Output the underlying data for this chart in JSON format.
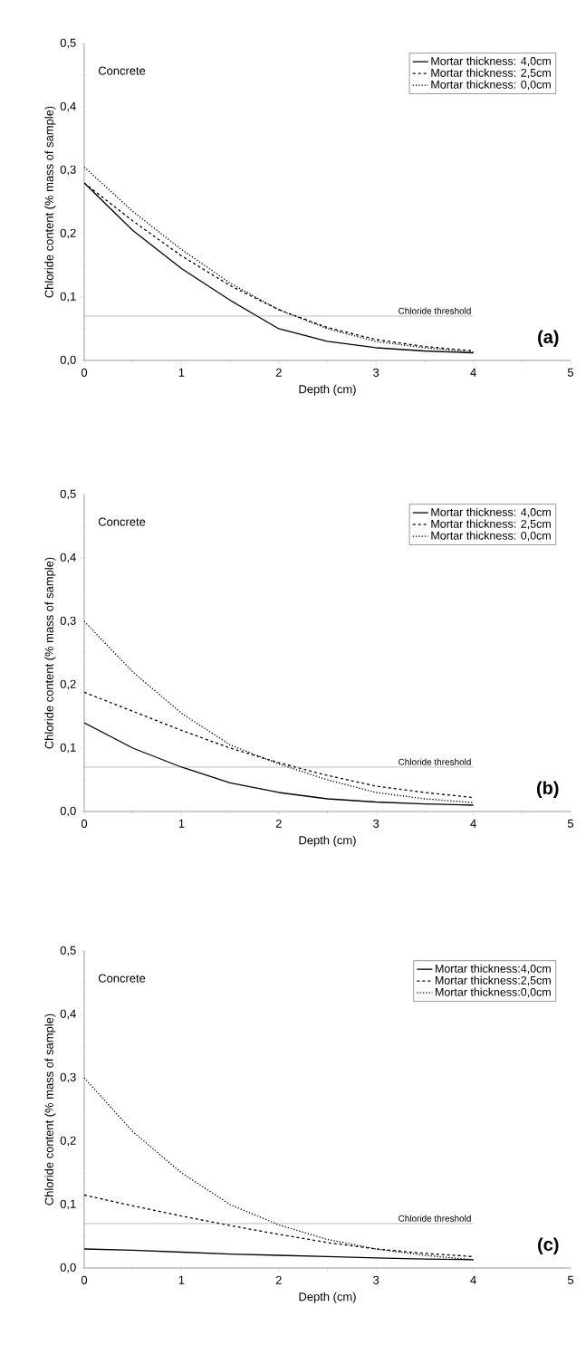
{
  "chart_data": [
    {
      "type": "line",
      "xlabel": "Depth (cm)",
      "ylabel": "Chloride content (% mass of sample)",
      "xlim": [
        0,
        5
      ],
      "ylim": [
        0,
        0.5
      ],
      "xticks": [
        0,
        1,
        2,
        3,
        4,
        5
      ],
      "yticks": [
        {
          "value": 0,
          "label": "0,0"
        },
        {
          "value": 0.1,
          "label": "0,1"
        },
        {
          "value": 0.2,
          "label": "0,2"
        },
        {
          "value": 0.3,
          "label": "0,3"
        },
        {
          "value": 0.4,
          "label": "0,4"
        },
        {
          "value": 0.5,
          "label": "0,5"
        }
      ],
      "legend": "top right",
      "annotations": [
        "Concrete",
        "(a)"
      ],
      "ref_lines": [
        {
          "axis": "y",
          "value": 0.07,
          "label": "Chloride threshold",
          "color": "#555555"
        }
      ],
      "x": [
        0,
        0.5,
        1,
        1.5,
        2,
        2.5,
        3,
        3.5,
        4
      ],
      "series": [
        {
          "name": "Mortar thickness: 4,0cm",
          "color": "#000000",
          "line_style": "solid",
          "values": [
            0.28,
            0.205,
            0.145,
            0.095,
            0.05,
            0.03,
            0.02,
            0.015,
            0.012
          ]
        },
        {
          "name": "Mortar thickness: 2,5cm",
          "color": "#000000",
          "line_style": "dashed",
          "values": [
            0.28,
            0.22,
            0.165,
            0.118,
            0.08,
            0.052,
            0.033,
            0.022,
            0.015
          ]
        },
        {
          "name": "Mortar thickness: 0,0cm",
          "color": "#000000",
          "line_style": "dotted",
          "values": [
            0.305,
            0.235,
            0.175,
            0.122,
            0.08,
            0.05,
            0.03,
            0.02,
            0.013
          ]
        }
      ]
    },
    {
      "type": "line",
      "xlabel": "Depth (cm)",
      "ylabel": "Chloride content (% mass of sample)",
      "xlim": [
        0,
        5
      ],
      "ylim": [
        0,
        0.5
      ],
      "xticks": [
        0,
        1,
        2,
        3,
        4,
        5
      ],
      "yticks": [
        {
          "value": 0,
          "label": "0,0"
        },
        {
          "value": 0.1,
          "label": "0,1"
        },
        {
          "value": 0.2,
          "label": "0,2"
        },
        {
          "value": 0.3,
          "label": "0,3"
        },
        {
          "value": 0.4,
          "label": "0,4"
        },
        {
          "value": 0.5,
          "label": "0,5"
        }
      ],
      "legend": "top right",
      "annotations": [
        "Concrete",
        "(b)"
      ],
      "ref_lines": [
        {
          "axis": "y",
          "value": 0.07,
          "label": "Chloride threshold",
          "color": "#555555"
        }
      ],
      "x": [
        0,
        0.5,
        1,
        1.5,
        2,
        2.5,
        3,
        3.5,
        4
      ],
      "series": [
        {
          "name": "Mortar thickness: 4,0cm",
          "color": "#000000",
          "line_style": "solid",
          "values": [
            0.14,
            0.1,
            0.07,
            0.045,
            0.03,
            0.02,
            0.015,
            0.012,
            0.01
          ]
        },
        {
          "name": "Mortar thickness: 2,5cm",
          "color": "#000000",
          "line_style": "dashed",
          "values": [
            0.188,
            0.158,
            0.128,
            0.1,
            0.077,
            0.057,
            0.04,
            0.03,
            0.022
          ]
        },
        {
          "name": "Mortar thickness: 0,0cm",
          "color": "#000000",
          "line_style": "dotted",
          "values": [
            0.3,
            0.22,
            0.155,
            0.105,
            0.075,
            0.05,
            0.03,
            0.02,
            0.014
          ]
        }
      ]
    },
    {
      "type": "line",
      "xlabel": "Depth (cm)",
      "ylabel": "Chloride content (% mass of sample)",
      "xlim": [
        0,
        5
      ],
      "ylim": [
        0,
        0.5
      ],
      "xticks": [
        0,
        1,
        2,
        3,
        4,
        5
      ],
      "yticks": [
        {
          "value": 0,
          "label": "0,0"
        },
        {
          "value": 0.1,
          "label": "0,1"
        },
        {
          "value": 0.2,
          "label": "0,2"
        },
        {
          "value": 0.3,
          "label": "0,3"
        },
        {
          "value": 0.4,
          "label": "0,4"
        },
        {
          "value": 0.5,
          "label": "0,5"
        }
      ],
      "legend": "top right",
      "annotations": [
        "Concrete",
        "(c)"
      ],
      "ref_lines": [
        {
          "axis": "y",
          "value": 0.07,
          "label": "Chloride threshold",
          "color": "#555555"
        }
      ],
      "x": [
        0,
        0.5,
        1,
        1.5,
        2,
        2.5,
        3,
        3.5,
        4
      ],
      "series": [
        {
          "name": "Mortar thickness:4,0cm",
          "color": "#000000",
          "line_style": "solid",
          "values": [
            0.03,
            0.028,
            0.025,
            0.022,
            0.02,
            0.018,
            0.016,
            0.014,
            0.013
          ]
        },
        {
          "name": "Mortar thickness:2,5cm",
          "color": "#000000",
          "line_style": "dashed",
          "values": [
            0.115,
            0.098,
            0.082,
            0.067,
            0.053,
            0.04,
            0.03,
            0.023,
            0.018
          ]
        },
        {
          "name": "Mortar thickness:0,0cm",
          "color": "#000000",
          "line_style": "dotted",
          "values": [
            0.3,
            0.215,
            0.15,
            0.1,
            0.068,
            0.045,
            0.03,
            0.02,
            0.013
          ]
        }
      ]
    }
  ]
}
